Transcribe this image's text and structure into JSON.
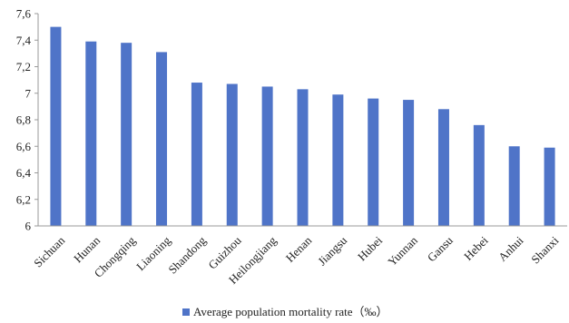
{
  "chart_data": {
    "type": "bar",
    "categories": [
      "Sichuan",
      "Hunan",
      "Chongqing",
      "Liaoning",
      "Shandong",
      "Guizhou",
      "Heilongjiang",
      "Henan",
      "Jiangsu",
      "Hubei",
      "Yunnan",
      "Gansu",
      "Hebei",
      "Anhui",
      "Shanxi"
    ],
    "series": [
      {
        "name": "Average population mortality rate（‰）",
        "values": [
          7.5,
          7.39,
          7.38,
          7.31,
          7.08,
          7.07,
          7.05,
          7.03,
          6.99,
          6.96,
          6.95,
          6.88,
          6.76,
          6.6,
          6.59
        ],
        "color": "#4f74c8"
      }
    ],
    "ylim": [
      6,
      7.6
    ],
    "yticks": [
      6,
      6.2,
      6.4,
      6.6,
      6.8,
      7,
      7.2,
      7.4,
      7.6
    ],
    "ytick_labels": [
      "6",
      "6,2",
      "6,4",
      "6,6",
      "6,8",
      "7",
      "7,2",
      "7,4",
      "7,6"
    ],
    "grid": false,
    "legend_position": "bottom-center",
    "xlabel": "",
    "ylabel": "",
    "title": ""
  }
}
